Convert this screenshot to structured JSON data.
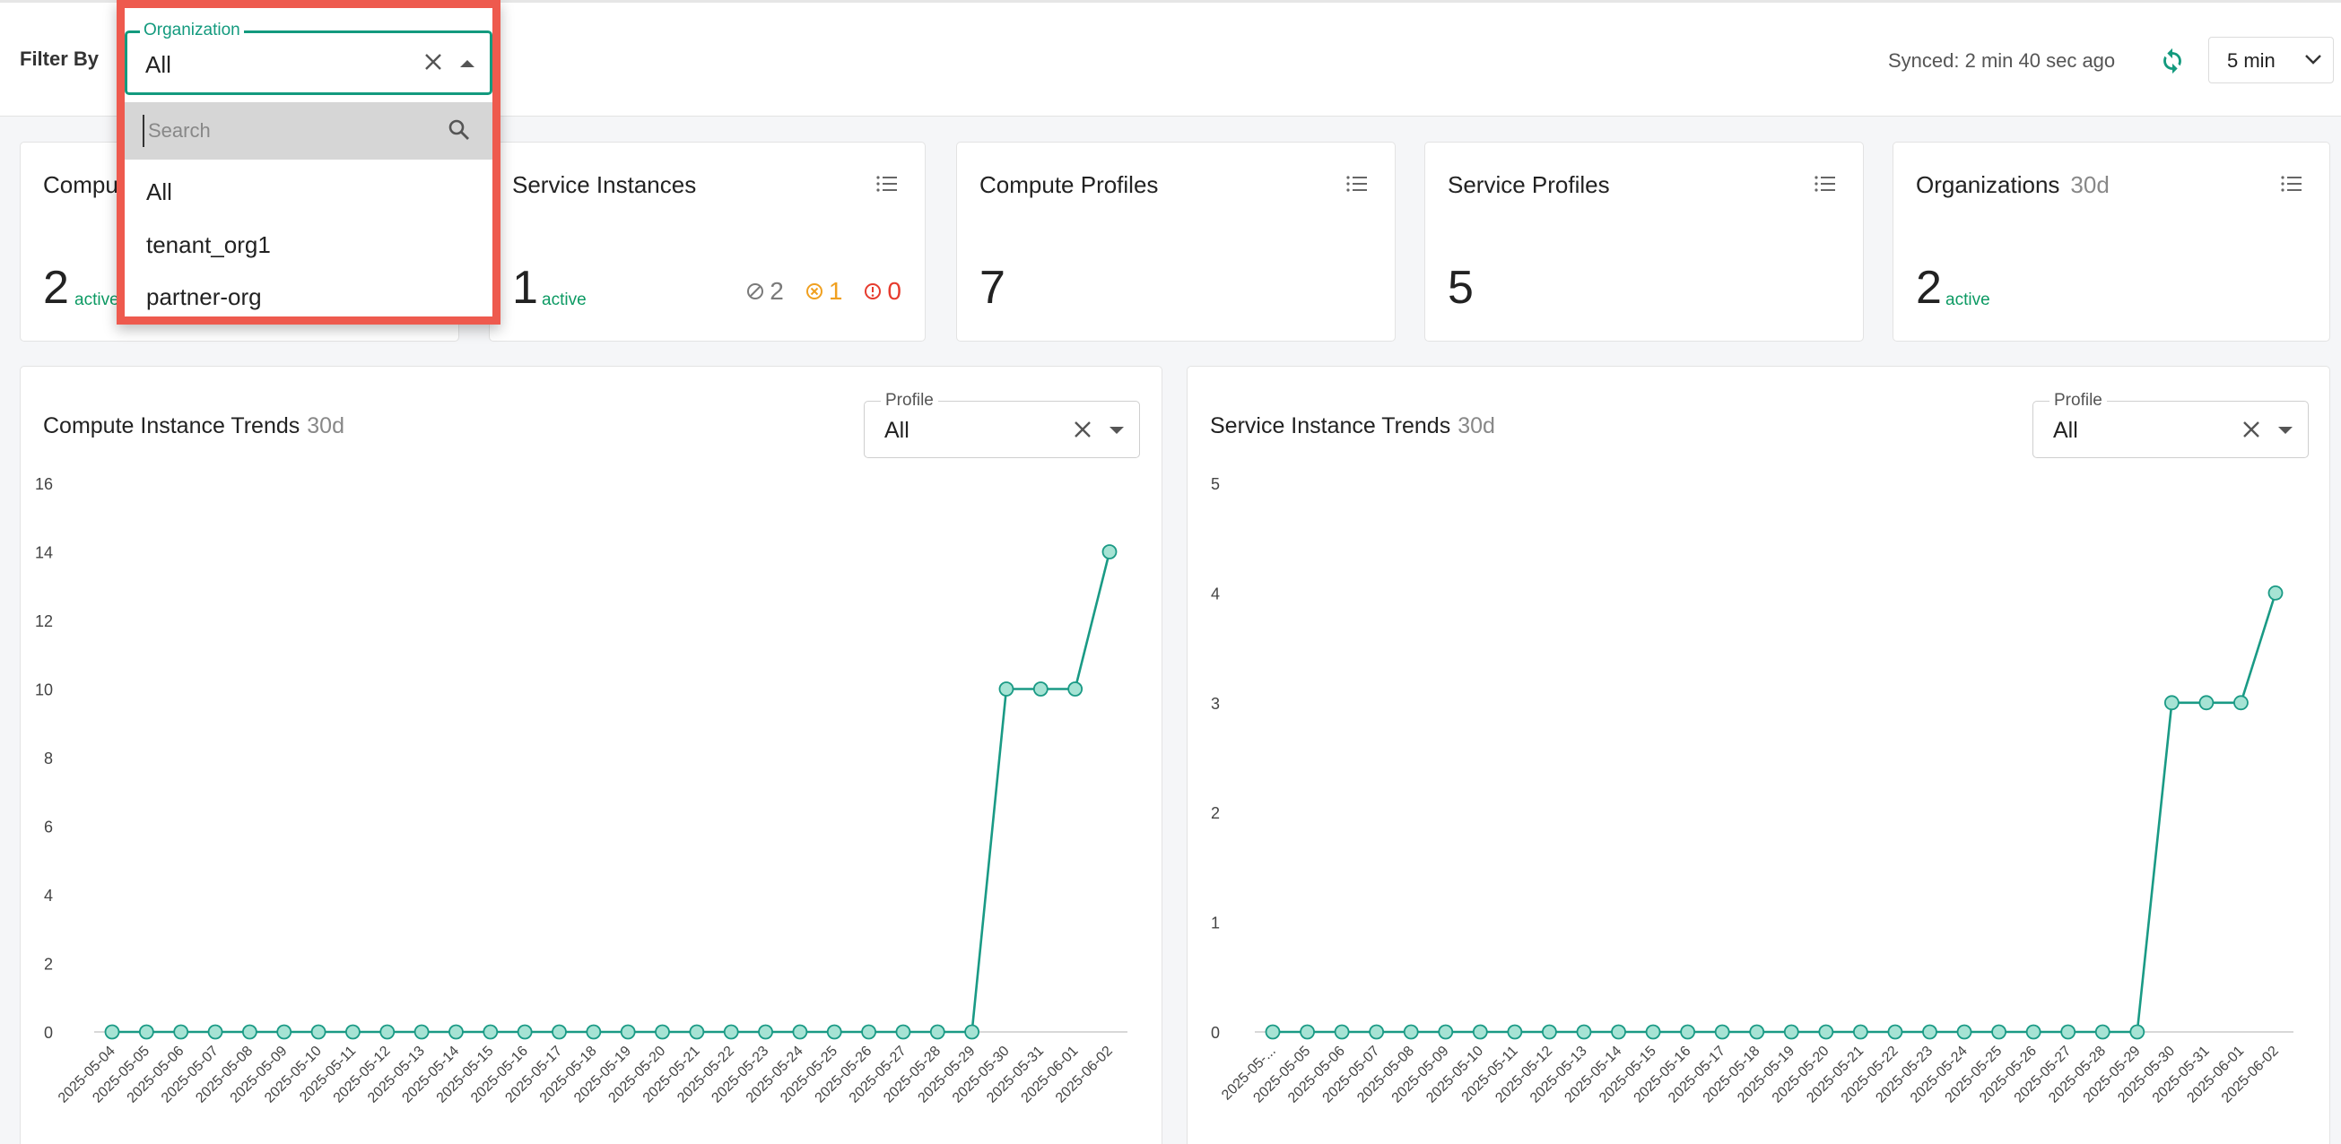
{
  "header": {
    "filter_label": "Filter By",
    "synced_text": "Synced: 2 min 40 sec ago",
    "refresh_icon": "refresh-icon",
    "interval": "5 min",
    "interval_icon": "chevron-down-icon"
  },
  "organization_filter": {
    "legend": "Organization",
    "value": "All",
    "search_placeholder": "Search",
    "options": [
      "All",
      "tenant_org1",
      "partner-org"
    ],
    "accent_color": "#139a7e",
    "highlight_color": "#ee5a4e"
  },
  "cards": [
    {
      "title": "Compute Instances",
      "visible_title": "Compu",
      "count": "2",
      "active_label": "active"
    },
    {
      "title": "Service Instances",
      "count": "1",
      "active_label": "active",
      "statuses": [
        {
          "icon": "stopped-icon",
          "value": "2",
          "color": "#7a7a7a"
        },
        {
          "icon": "warning-circle-icon",
          "value": "1",
          "color": "#f0a020"
        },
        {
          "icon": "error-circle-icon",
          "value": "0",
          "color": "#e63b2e"
        }
      ]
    },
    {
      "title": "Compute Profiles",
      "count": "7"
    },
    {
      "title": "Service Profiles",
      "count": "5"
    },
    {
      "title": "Organizations",
      "title_suffix": "30d",
      "count": "2",
      "active_label": "active"
    }
  ],
  "charts": {
    "profile_legend": "Profile",
    "profile_value": "All",
    "compute_title": "Compute Instance Trends",
    "service_title": "Service Instance Trends",
    "period": "30d"
  },
  "chart_data": [
    {
      "type": "line",
      "title": "Compute Instance Trends 30d",
      "x": [
        "2025-05-04",
        "2025-05-05",
        "2025-05-06",
        "2025-05-07",
        "2025-05-08",
        "2025-05-09",
        "2025-05-10",
        "2025-05-11",
        "2025-05-12",
        "2025-05-13",
        "2025-05-14",
        "2025-05-15",
        "2025-05-16",
        "2025-05-17",
        "2025-05-18",
        "2025-05-19",
        "2025-05-20",
        "2025-05-21",
        "2025-05-22",
        "2025-05-23",
        "2025-05-24",
        "2025-05-25",
        "2025-05-26",
        "2025-05-27",
        "2025-05-28",
        "2025-05-29",
        "2025-05-30",
        "2025-05-31",
        "2025-06-01",
        "2025-06-02"
      ],
      "values": [
        0,
        0,
        0,
        0,
        0,
        0,
        0,
        0,
        0,
        0,
        0,
        0,
        0,
        0,
        0,
        0,
        0,
        0,
        0,
        0,
        0,
        0,
        0,
        0,
        0,
        0,
        10,
        10,
        10,
        14
      ],
      "yticks": [
        0,
        2,
        4,
        6,
        8,
        10,
        12,
        14,
        16
      ],
      "ylim": [
        0,
        16
      ],
      "color": "#1a9a85"
    },
    {
      "type": "line",
      "title": "Service Instance Trends 30d",
      "x": [
        "2025-05-...",
        "2025-05-05",
        "2025-05-06",
        "2025-05-07",
        "2025-05-08",
        "2025-05-09",
        "2025-05-10",
        "2025-05-11",
        "2025-05-12",
        "2025-05-13",
        "2025-05-14",
        "2025-05-15",
        "2025-05-16",
        "2025-05-17",
        "2025-05-18",
        "2025-05-19",
        "2025-05-20",
        "2025-05-21",
        "2025-05-22",
        "2025-05-23",
        "2025-05-24",
        "2025-05-25",
        "2025-05-26",
        "2025-05-27",
        "2025-05-28",
        "2025-05-29",
        "2025-05-30",
        "2025-05-31",
        "2025-06-01",
        "2025-06-02"
      ],
      "values": [
        0,
        0,
        0,
        0,
        0,
        0,
        0,
        0,
        0,
        0,
        0,
        0,
        0,
        0,
        0,
        0,
        0,
        0,
        0,
        0,
        0,
        0,
        0,
        0,
        0,
        0,
        3,
        3,
        3,
        4
      ],
      "yticks": [
        0,
        1,
        2,
        3,
        4,
        5
      ],
      "ylim": [
        0,
        5
      ],
      "color": "#1a9a85"
    }
  ]
}
